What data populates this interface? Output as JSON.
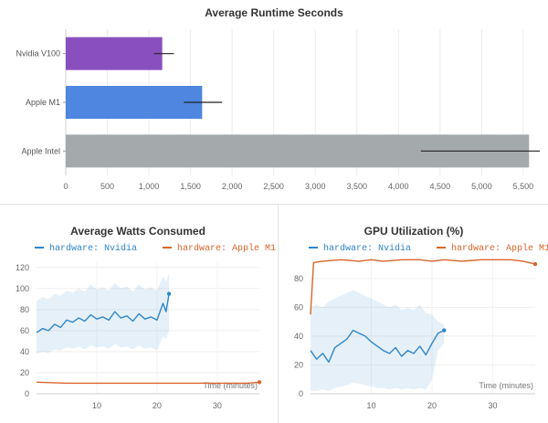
{
  "chart_data": [
    {
      "type": "bar",
      "orientation": "horizontal",
      "title": "Average Runtime Seconds",
      "categories": [
        "Nvidia V100",
        "Apple M1",
        "Apple Intel"
      ],
      "values": [
        1160,
        1640,
        5570
      ],
      "error_low": [
        1060,
        1420,
        4270
      ],
      "error_high": [
        1300,
        1880,
        5700
      ],
      "colors": [
        "#8a4fbf",
        "#4e86e0",
        "#a4a9ab"
      ],
      "xlim": [
        0,
        5600
      ],
      "xticks": [
        0,
        500,
        1000,
        1500,
        2000,
        2500,
        3000,
        3500,
        4000,
        4500,
        5000,
        5500
      ],
      "xtick_labels": [
        "0",
        "500",
        "1,000",
        "1,500",
        "2,000",
        "2,500",
        "3,000",
        "3,500",
        "4,000",
        "4,500",
        "5,000",
        "5,500"
      ],
      "grid": true
    },
    {
      "type": "line",
      "title": "Average Watts Consumed",
      "xlabel": "Time (minutes)",
      "xlim": [
        0,
        37
      ],
      "ylim": [
        0,
        125
      ],
      "xticks": [
        10,
        20,
        30
      ],
      "yticks": [
        0,
        20,
        40,
        60,
        80,
        100,
        120
      ],
      "legend_position": "top",
      "series": [
        {
          "name": "hardware: Nvidia",
          "color": "#2f86c9",
          "x": [
            0,
            1,
            2,
            3,
            4,
            5,
            6,
            7,
            8,
            9,
            10,
            11,
            12,
            13,
            14,
            15,
            16,
            17,
            18,
            19,
            20,
            21,
            21.5,
            22
          ],
          "values": [
            58,
            62,
            60,
            66,
            63,
            70,
            68,
            72,
            69,
            75,
            71,
            73,
            70,
            78,
            72,
            74,
            69,
            76,
            71,
            73,
            70,
            86,
            78,
            95
          ],
          "band_low": [
            38,
            40,
            39,
            42,
            41,
            44,
            43,
            45,
            42,
            46,
            44,
            45,
            43,
            47,
            44,
            45,
            42,
            46,
            43,
            44,
            41,
            55,
            52,
            60
          ],
          "band_high": [
            88,
            92,
            90,
            95,
            93,
            98,
            96,
            100,
            97,
            104,
            99,
            101,
            98,
            105,
            100,
            102,
            97,
            104,
            99,
            101,
            98,
            112,
            106,
            115
          ]
        },
        {
          "name": "hardware: Apple M1",
          "color": "#d9652b",
          "x": [
            0,
            5,
            10,
            15,
            20,
            25,
            30,
            35,
            37
          ],
          "values": [
            11,
            10,
            10,
            10,
            10,
            10,
            10,
            10,
            11
          ]
        }
      ]
    },
    {
      "type": "line",
      "title": "GPU Utilization (%)",
      "xlabel": "Time (minutes)",
      "xlim": [
        0,
        37
      ],
      "ylim": [
        0,
        97
      ],
      "xticks": [
        10,
        20,
        30
      ],
      "yticks": [
        0,
        20,
        40,
        60,
        80
      ],
      "legend_position": "top",
      "series": [
        {
          "name": "hardware: Nvidia",
          "color": "#2f86c9",
          "x": [
            0,
            1,
            2,
            3,
            4,
            5,
            6,
            7,
            8,
            9,
            10,
            11,
            12,
            13,
            14,
            15,
            16,
            17,
            18,
            19,
            20,
            21,
            22
          ],
          "values": [
            30,
            24,
            28,
            22,
            32,
            35,
            38,
            44,
            42,
            40,
            36,
            33,
            30,
            28,
            32,
            26,
            30,
            28,
            33,
            27,
            35,
            42,
            44
          ],
          "band_low": [
            2,
            2,
            3,
            2,
            4,
            5,
            6,
            8,
            7,
            6,
            5,
            4,
            4,
            3,
            4,
            3,
            4,
            3,
            4,
            3,
            10,
            30,
            35
          ],
          "band_high": [
            60,
            62,
            60,
            64,
            66,
            68,
            70,
            72,
            70,
            68,
            66,
            64,
            62,
            60,
            62,
            58,
            60,
            58,
            62,
            56,
            55,
            50,
            48
          ]
        },
        {
          "name": "hardware: Apple M1",
          "color": "#d9652b",
          "x": [
            0,
            0.5,
            2,
            5,
            8,
            10,
            12,
            15,
            18,
            20,
            22,
            25,
            28,
            30,
            33,
            35,
            37
          ],
          "values": [
            55,
            91,
            92,
            93,
            92,
            93,
            92,
            93,
            93,
            92,
            93,
            92,
            93,
            93,
            93,
            92,
            90
          ]
        }
      ]
    }
  ]
}
